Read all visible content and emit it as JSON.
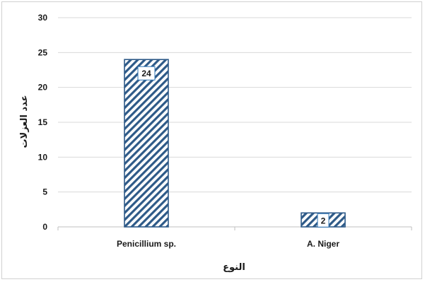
{
  "chart_data": {
    "type": "bar",
    "title": "",
    "xlabel": "النوع",
    "ylabel": "عدد العزلات",
    "categories": [
      "Penicillium sp.",
      "A. Niger"
    ],
    "values": [
      24,
      2
    ],
    "data_labels": [
      "24",
      "2"
    ],
    "ylim": [
      0,
      30
    ],
    "yticks": [
      "0",
      "5",
      "10",
      "15",
      "20",
      "25",
      "30"
    ],
    "grid": true,
    "legend": "none",
    "colors": {
      "bar_stroke": "#2e5a88",
      "hatch": "#2e5a88",
      "grid": "#d9d9d9",
      "label_border": "#2e75b6"
    }
  }
}
